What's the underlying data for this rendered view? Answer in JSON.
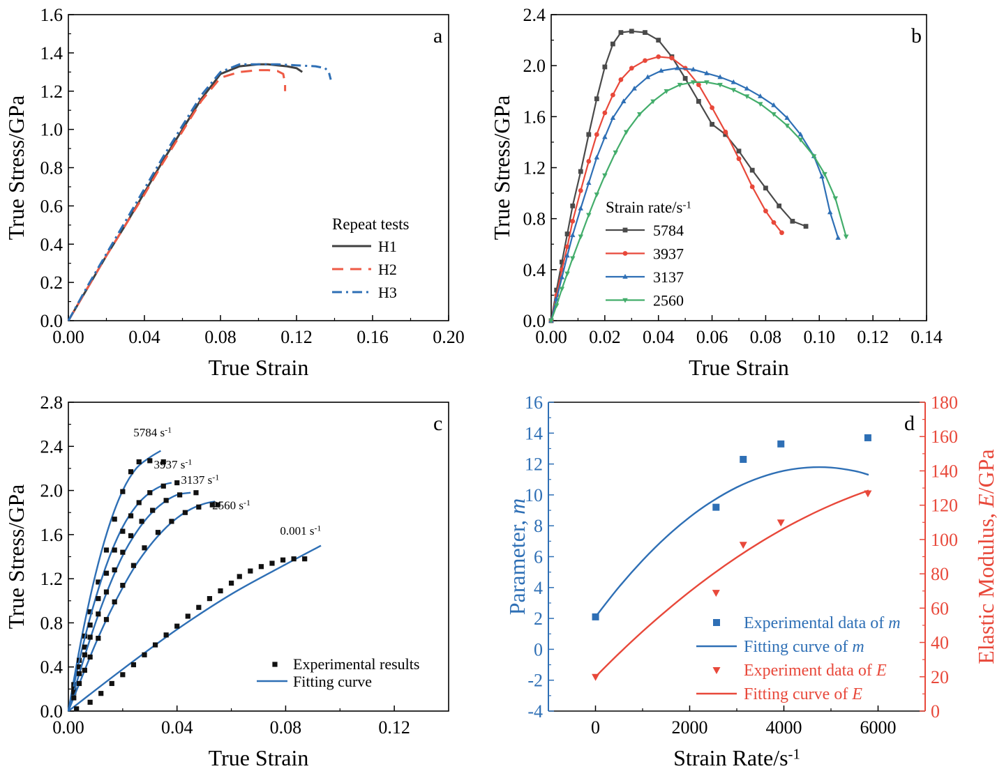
{
  "chart_data": [
    {
      "type": "line",
      "panel_label": "a",
      "xlabel": "True Strain",
      "ylabel": "True Stress/GPa",
      "xlim": [
        0,
        0.2
      ],
      "ylim": [
        0,
        1.6
      ],
      "xticks": [
        "0.00",
        "0.04",
        "0.08",
        "0.12",
        "0.16",
        "0.20"
      ],
      "yticks": [
        "0.0",
        "0.2",
        "0.4",
        "0.6",
        "0.8",
        "1.0",
        "1.2",
        "1.4",
        "1.6"
      ],
      "legend_title": "Repeat tests",
      "legend_position": "bottom-right",
      "series": [
        {
          "name": "H1",
          "color": "#404040",
          "dash": "solid",
          "x": [
            0,
            0.01,
            0.02,
            0.03,
            0.04,
            0.05,
            0.06,
            0.07,
            0.08,
            0.09,
            0.1,
            0.105,
            0.11,
            0.115,
            0.12,
            0.123
          ],
          "y": [
            0,
            0.17,
            0.34,
            0.5,
            0.67,
            0.84,
            1.0,
            1.16,
            1.29,
            1.33,
            1.34,
            1.34,
            1.335,
            1.33,
            1.32,
            1.3
          ]
        },
        {
          "name": "H2",
          "color": "#ee5a45",
          "dash": "dashed",
          "x": [
            0,
            0.01,
            0.02,
            0.03,
            0.04,
            0.05,
            0.06,
            0.07,
            0.08,
            0.09,
            0.1,
            0.105,
            0.11,
            0.113,
            0.114,
            0.114
          ],
          "y": [
            0,
            0.17,
            0.34,
            0.5,
            0.66,
            0.83,
            0.99,
            1.15,
            1.27,
            1.3,
            1.31,
            1.31,
            1.305,
            1.29,
            1.24,
            1.2
          ]
        },
        {
          "name": "H3",
          "color": "#2e6fb5",
          "dash": "dashdot",
          "x": [
            0,
            0.01,
            0.02,
            0.03,
            0.04,
            0.05,
            0.06,
            0.07,
            0.08,
            0.09,
            0.1,
            0.11,
            0.12,
            0.13,
            0.135,
            0.137,
            0.138
          ],
          "y": [
            0,
            0.18,
            0.35,
            0.52,
            0.69,
            0.86,
            1.02,
            1.18,
            1.3,
            1.34,
            1.34,
            1.34,
            1.335,
            1.33,
            1.32,
            1.3,
            1.26
          ]
        }
      ]
    },
    {
      "type": "line",
      "panel_label": "b",
      "xlabel": "True Strain",
      "ylabel": "True Stress/GPa",
      "xlim": [
        0,
        0.14
      ],
      "ylim": [
        0,
        2.4
      ],
      "xticks": [
        "0.00",
        "0.02",
        "0.04",
        "0.06",
        "0.08",
        "0.10",
        "0.12",
        "0.14"
      ],
      "yticks": [
        "0.0",
        "0.4",
        "0.8",
        "1.2",
        "1.6",
        "2.0",
        "2.4"
      ],
      "legend_title": "Strain rate/s",
      "legend_title_superscript": "-1",
      "legend_position": "bottom-left",
      "series": [
        {
          "name": "5784",
          "color": "#4a4a4a",
          "marker": "square",
          "x": [
            0,
            0.002,
            0.004,
            0.006,
            0.008,
            0.011,
            0.014,
            0.017,
            0.02,
            0.023,
            0.026,
            0.03,
            0.035,
            0.04,
            0.045,
            0.05,
            0.055,
            0.06,
            0.065,
            0.07,
            0.075,
            0.08,
            0.085,
            0.09,
            0.095
          ],
          "y": [
            0,
            0.24,
            0.46,
            0.68,
            0.9,
            1.17,
            1.46,
            1.74,
            1.99,
            2.17,
            2.26,
            2.27,
            2.26,
            2.2,
            2.07,
            1.9,
            1.72,
            1.54,
            1.46,
            1.33,
            1.18,
            1.04,
            0.9,
            0.78,
            0.74
          ]
        },
        {
          "name": "3937",
          "color": "#e8483a",
          "marker": "circle",
          "x": [
            0,
            0.002,
            0.004,
            0.006,
            0.008,
            0.011,
            0.014,
            0.017,
            0.02,
            0.023,
            0.026,
            0.03,
            0.035,
            0.04,
            0.045,
            0.05,
            0.055,
            0.06,
            0.065,
            0.07,
            0.075,
            0.08,
            0.083,
            0.086
          ],
          "y": [
            0,
            0.2,
            0.4,
            0.58,
            0.78,
            1.02,
            1.25,
            1.46,
            1.63,
            1.77,
            1.89,
            1.98,
            2.04,
            2.07,
            2.06,
            1.98,
            1.85,
            1.67,
            1.48,
            1.27,
            1.05,
            0.86,
            0.77,
            0.69
          ]
        },
        {
          "name": "3137",
          "color": "#2e6fb5",
          "marker": "triangle-up",
          "x": [
            0,
            0.002,
            0.004,
            0.006,
            0.008,
            0.011,
            0.014,
            0.017,
            0.02,
            0.023,
            0.027,
            0.031,
            0.036,
            0.041,
            0.047,
            0.053,
            0.058,
            0.063,
            0.068,
            0.073,
            0.078,
            0.083,
            0.088,
            0.093,
            0.098,
            0.101,
            0.104,
            0.107
          ],
          "y": [
            0,
            0.17,
            0.34,
            0.51,
            0.67,
            0.88,
            1.08,
            1.28,
            1.44,
            1.59,
            1.72,
            1.82,
            1.91,
            1.96,
            1.98,
            1.97,
            1.94,
            1.91,
            1.87,
            1.82,
            1.76,
            1.69,
            1.59,
            1.46,
            1.29,
            1.13,
            0.85,
            0.65
          ]
        },
        {
          "name": "2560",
          "color": "#43ad6b",
          "marker": "triangle-down",
          "x": [
            0,
            0.002,
            0.004,
            0.006,
            0.008,
            0.011,
            0.014,
            0.017,
            0.02,
            0.024,
            0.028,
            0.033,
            0.038,
            0.043,
            0.048,
            0.053,
            0.058,
            0.063,
            0.068,
            0.073,
            0.078,
            0.083,
            0.088,
            0.093,
            0.098,
            0.102,
            0.106,
            0.11
          ],
          "y": [
            0,
            0.12,
            0.25,
            0.37,
            0.49,
            0.66,
            0.83,
            0.99,
            1.14,
            1.32,
            1.48,
            1.62,
            1.72,
            1.8,
            1.85,
            1.87,
            1.87,
            1.85,
            1.81,
            1.76,
            1.7,
            1.62,
            1.53,
            1.42,
            1.29,
            1.15,
            0.96,
            0.66
          ]
        }
      ]
    },
    {
      "type": "scatter",
      "panel_label": "c",
      "xlabel": "True Strain",
      "ylabel": "True Stress/GPa",
      "xlim": [
        0,
        0.14
      ],
      "ylim": [
        0,
        2.8
      ],
      "xticks": [
        "0.00",
        "0.04",
        "0.08",
        "0.12"
      ],
      "yticks": [
        "0.0",
        "0.4",
        "0.8",
        "1.2",
        "1.6",
        "2.0",
        "2.4",
        "2.8"
      ],
      "legend_position": "bottom-right",
      "legend": {
        "points": "Experimental results",
        "line": "Fitting curve"
      },
      "annotations": [
        {
          "text": "5784 s",
          "sup": "-1",
          "at": [
            0.031,
            2.49
          ]
        },
        {
          "text": "3937 s",
          "sup": "-1",
          "at": [
            0.0385,
            2.2
          ]
        },
        {
          "text": "3137 s",
          "sup": "-1",
          "at": [
            0.0485,
            2.06
          ]
        },
        {
          "text": "2560 s",
          "sup": "-1",
          "at": [
            0.06,
            1.83
          ]
        },
        {
          "text": "0.001 s",
          "sup": "-1",
          "at": [
            0.0855,
            1.6
          ]
        }
      ],
      "line_color": "#2e6fb5",
      "point_color": "#111111",
      "series": [
        {
          "name": "5784 s-1",
          "x": [
            0.002,
            0.004,
            0.006,
            0.008,
            0.011,
            0.014,
            0.017,
            0.02,
            0.023,
            0.026,
            0.03,
            0.035
          ],
          "y": [
            0.24,
            0.46,
            0.68,
            0.9,
            1.17,
            1.46,
            1.74,
            1.99,
            2.17,
            2.26,
            2.27,
            2.26
          ],
          "fit_x": [
            0,
            0.005,
            0.01,
            0.015,
            0.02,
            0.025,
            0.03,
            0.034
          ],
          "fit_y": [
            0,
            0.68,
            1.24,
            1.68,
            2.0,
            2.2,
            2.3,
            2.36
          ]
        },
        {
          "name": "3937 s-1",
          "x": [
            0.002,
            0.004,
            0.006,
            0.008,
            0.011,
            0.014,
            0.017,
            0.02,
            0.023,
            0.026,
            0.03,
            0.035,
            0.04
          ],
          "y": [
            0.2,
            0.4,
            0.58,
            0.78,
            1.02,
            1.25,
            1.46,
            1.63,
            1.77,
            1.89,
            1.98,
            2.04,
            2.07
          ],
          "fit_x": [
            0,
            0.005,
            0.01,
            0.015,
            0.02,
            0.025,
            0.03,
            0.035,
            0.038
          ],
          "fit_y": [
            0,
            0.56,
            1.02,
            1.39,
            1.67,
            1.86,
            1.98,
            2.05,
            2.07
          ]
        },
        {
          "name": "3137 s-1",
          "x": [
            0.002,
            0.004,
            0.006,
            0.008,
            0.011,
            0.014,
            0.017,
            0.02,
            0.023,
            0.027,
            0.031,
            0.036,
            0.041,
            0.047
          ],
          "y": [
            0.17,
            0.34,
            0.51,
            0.67,
            0.88,
            1.08,
            1.28,
            1.44,
            1.59,
            1.72,
            1.82,
            1.91,
            1.96,
            1.98
          ],
          "fit_x": [
            0,
            0.005,
            0.01,
            0.015,
            0.02,
            0.025,
            0.03,
            0.035,
            0.04,
            0.045
          ],
          "fit_y": [
            0,
            0.42,
            0.8,
            1.13,
            1.41,
            1.62,
            1.78,
            1.89,
            1.96,
            1.98
          ]
        },
        {
          "name": "2560 s-1",
          "x": [
            0.002,
            0.004,
            0.006,
            0.008,
            0.011,
            0.014,
            0.017,
            0.02,
            0.024,
            0.028,
            0.033,
            0.038,
            0.043,
            0.048,
            0.053,
            0.055
          ],
          "y": [
            0.12,
            0.25,
            0.37,
            0.49,
            0.66,
            0.83,
            0.99,
            1.14,
            1.32,
            1.48,
            1.62,
            1.72,
            1.8,
            1.85,
            1.87,
            1.87
          ],
          "fit_x": [
            0,
            0.005,
            0.01,
            0.015,
            0.02,
            0.025,
            0.03,
            0.035,
            0.04,
            0.045,
            0.05,
            0.054
          ],
          "fit_y": [
            0,
            0.31,
            0.61,
            0.88,
            1.12,
            1.33,
            1.5,
            1.64,
            1.75,
            1.83,
            1.88,
            1.9
          ]
        },
        {
          "name": "0.001 s-1",
          "x": [
            0.003,
            0.008,
            0.012,
            0.016,
            0.02,
            0.024,
            0.028,
            0.032,
            0.036,
            0.04,
            0.044,
            0.048,
            0.052,
            0.056,
            0.06,
            0.063,
            0.067,
            0.071,
            0.075,
            0.079,
            0.083,
            0.087
          ],
          "y": [
            0.02,
            0.08,
            0.16,
            0.25,
            0.33,
            0.42,
            0.51,
            0.6,
            0.69,
            0.77,
            0.86,
            0.94,
            1.02,
            1.09,
            1.16,
            1.22,
            1.27,
            1.31,
            1.34,
            1.37,
            1.38,
            1.38
          ],
          "fit_x": [
            0,
            0.02,
            0.04,
            0.06,
            0.08,
            0.093
          ],
          "fit_y": [
            0,
            0.38,
            0.74,
            1.06,
            1.33,
            1.5
          ]
        }
      ]
    },
    {
      "type": "scatter",
      "panel_label": "d",
      "xlabel": "Strain Rate/s",
      "xlabel_superscript": "-1",
      "ylabel_left": "Parameter, m",
      "ylabel_right": "Elastic Modulus, E/GPa",
      "xlim": [
        -1000,
        7000
      ],
      "ylim_left": [
        -4,
        16
      ],
      "ylim_right": [
        0,
        180
      ],
      "xticks": [
        "0",
        "2000",
        "4000",
        "6000"
      ],
      "yticks_left": [
        "-4",
        "-2",
        "0",
        "2",
        "4",
        "6",
        "8",
        "10",
        "12",
        "14",
        "16"
      ],
      "yticks_right": [
        "0",
        "20",
        "40",
        "60",
        "80",
        "100",
        "120",
        "140",
        "160",
        "180"
      ],
      "left_axis_color": "#2e6fb5",
      "right_axis_color": "#e8483a",
      "legend_position": "bottom-right",
      "series": [
        {
          "name": "Experimental data of m",
          "axis": "left",
          "marker": "square",
          "color": "#2e6fb5",
          "x": [
            1,
            2560,
            3137,
            3937,
            5784
          ],
          "y": [
            2.1,
            9.2,
            12.3,
            13.3,
            13.7
          ]
        },
        {
          "name": "Fitting curve of m",
          "axis": "left",
          "line": true,
          "color": "#2e6fb5",
          "x": [
            0,
            500,
            1000,
            1500,
            2000,
            2500,
            3000,
            3500,
            4000,
            4500,
            5000,
            5500,
            5800
          ],
          "y": [
            2.1,
            4.04,
            5.76,
            7.27,
            8.56,
            9.63,
            10.49,
            11.13,
            11.56,
            11.77,
            11.77,
            11.55,
            11.3
          ]
        },
        {
          "name": "Experiment data of E",
          "axis": "right",
          "marker": "triangle-down",
          "color": "#e8483a",
          "x": [
            1,
            2560,
            3137,
            3937,
            5784
          ],
          "y": [
            20,
            69,
            97,
            110,
            127
          ]
        },
        {
          "name": "Fitting curve of E",
          "axis": "right",
          "line": true,
          "color": "#e8483a",
          "x": [
            0,
            500,
            1000,
            1500,
            2000,
            2500,
            3000,
            3500,
            4000,
            4500,
            5000,
            5500,
            5800
          ],
          "y": [
            20,
            33.6,
            46.4,
            58.4,
            69.6,
            80,
            89.6,
            98.4,
            106.4,
            113.6,
            120,
            125.6,
            128.6
          ]
        }
      ],
      "legend_entries": [
        {
          "text": "Experimental data of ",
          "italic": "m"
        },
        {
          "text": "Fitting curve of ",
          "italic": "m"
        },
        {
          "text": "Experiment data of ",
          "italic": "E"
        },
        {
          "text": "Fitting curve of ",
          "italic": "E"
        }
      ]
    }
  ]
}
